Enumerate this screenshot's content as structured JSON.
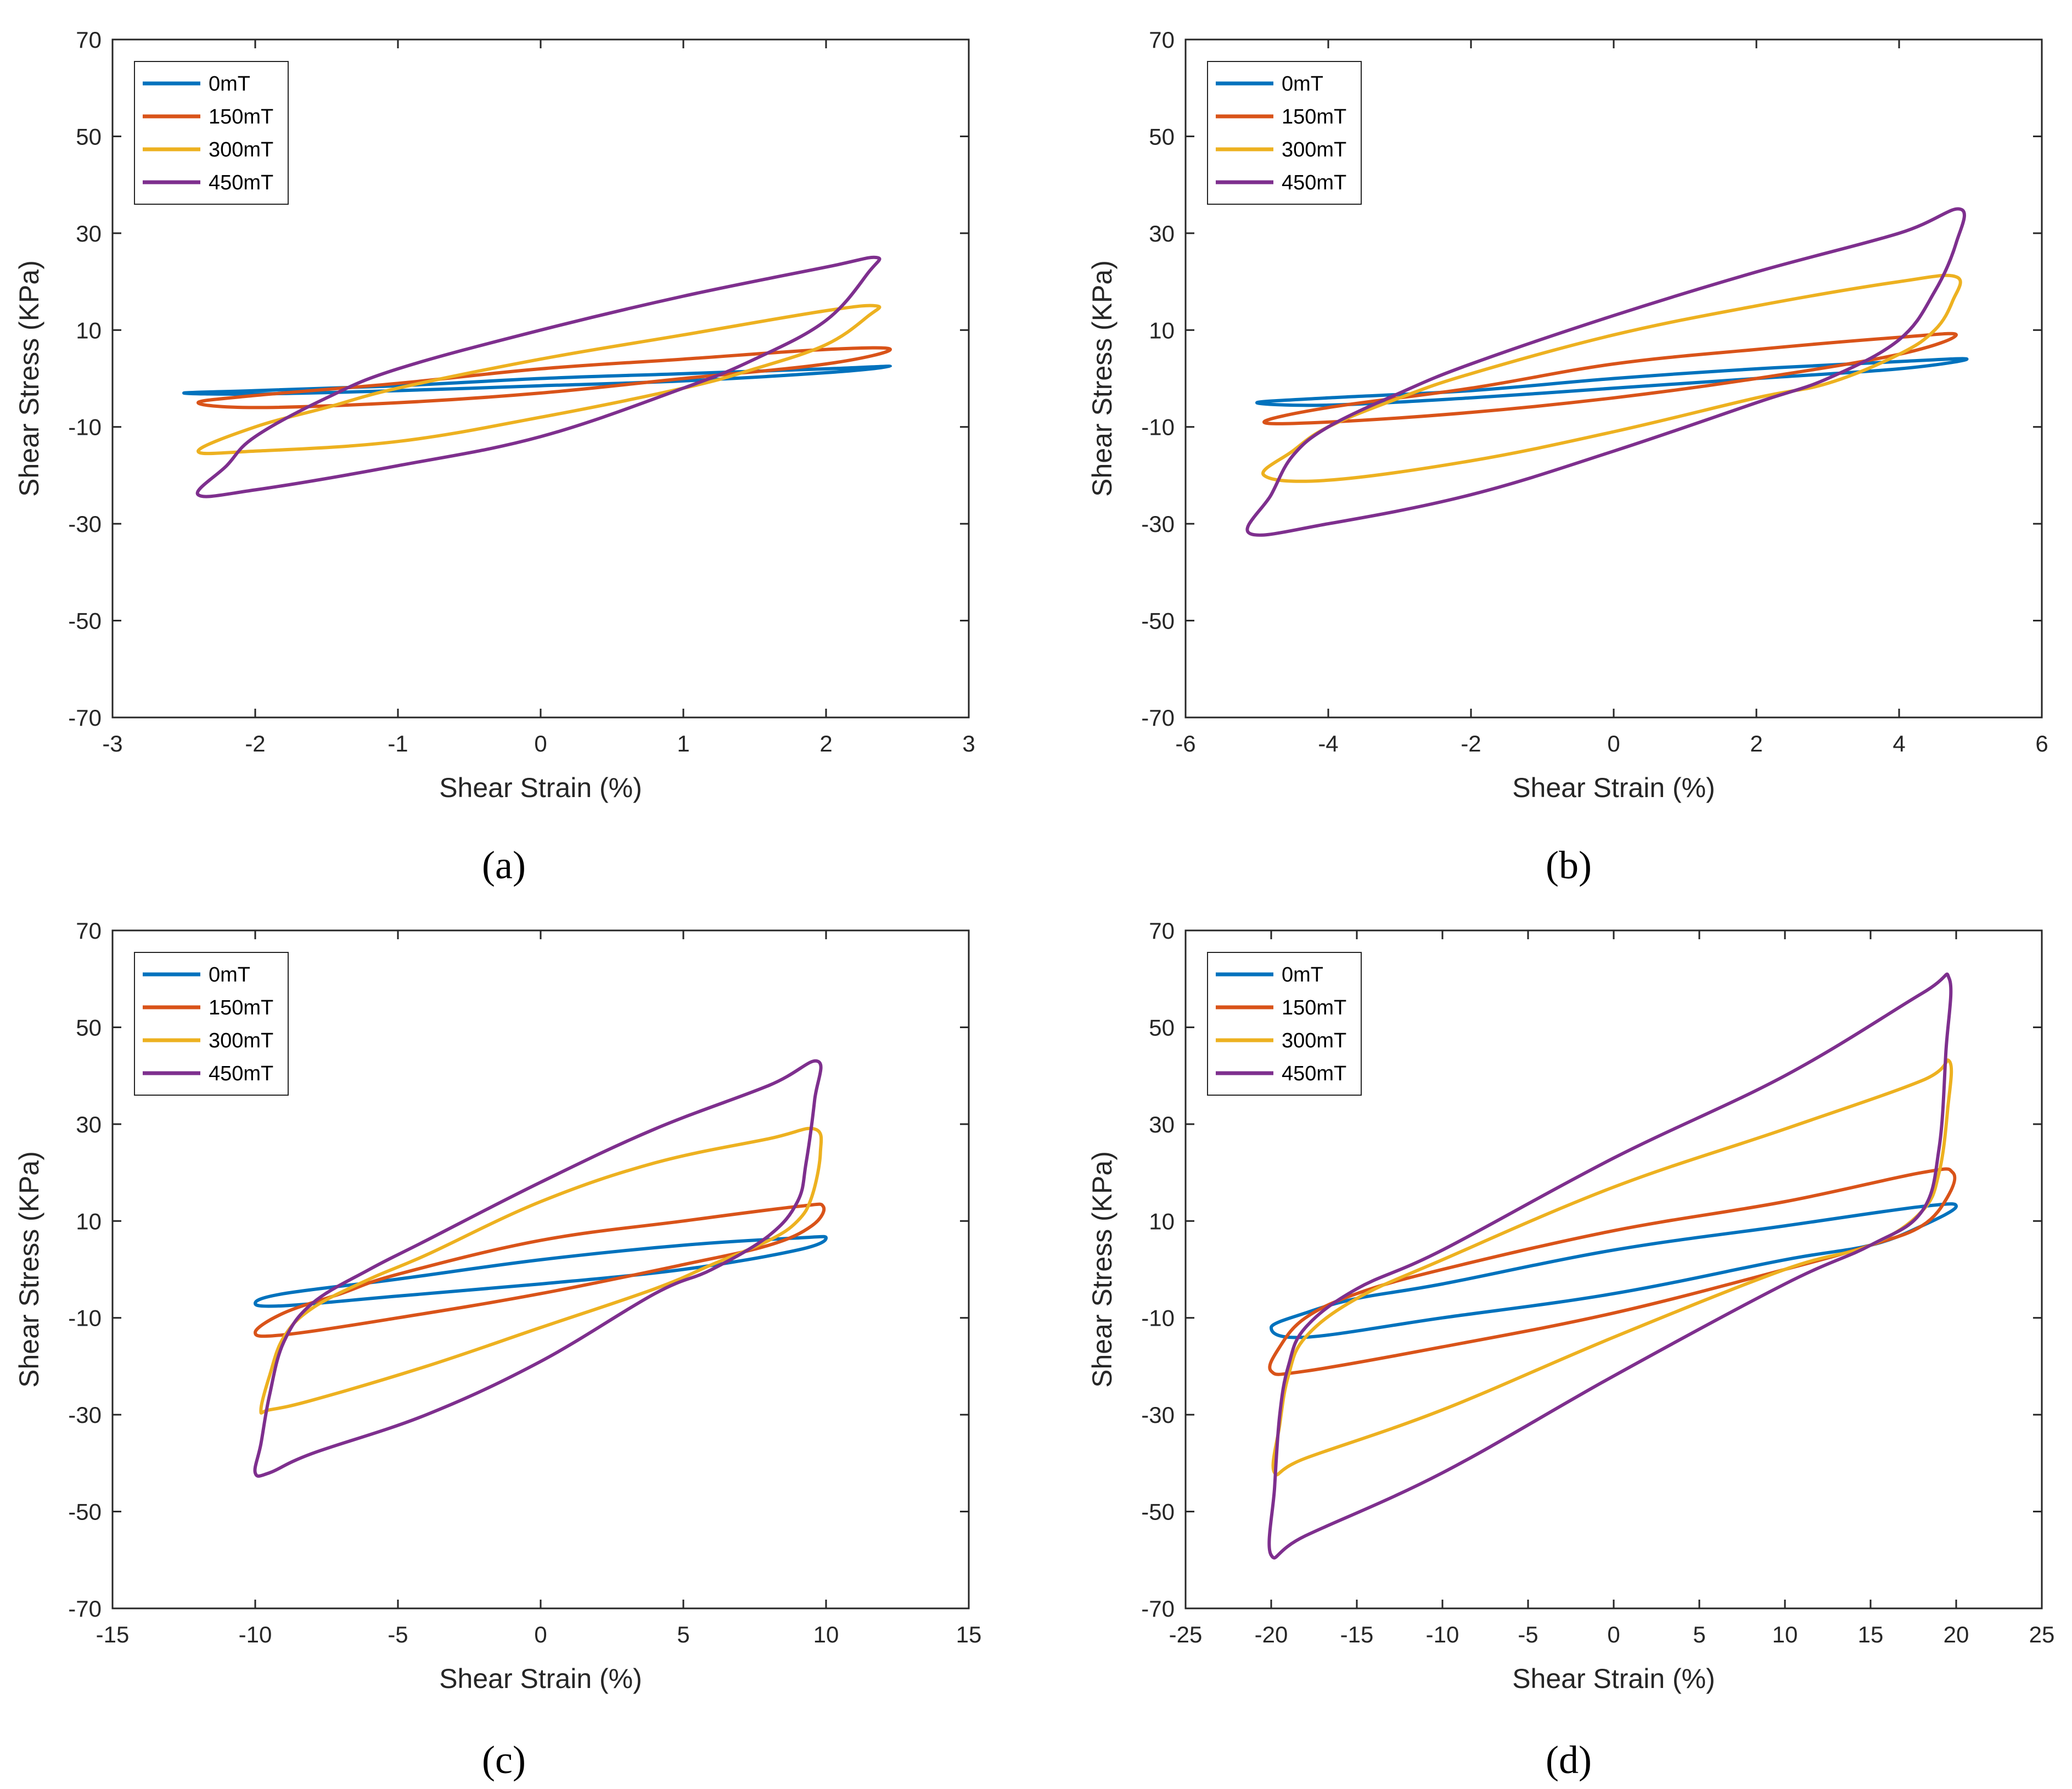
{
  "colors": {
    "0mT": "#0072BD",
    "150mT": "#D95319",
    "300mT": "#EDB120",
    "450mT": "#7E2F8E"
  },
  "chart_data": [
    {
      "type": "line",
      "caption": "(a)",
      "xlabel": "Shear Strain (%)",
      "ylabel": "Shear Stress (KPa)",
      "xlim": [
        -3,
        3
      ],
      "ylim": [
        -70,
        70
      ],
      "xticks": [
        -3,
        -2,
        -1,
        0,
        1,
        2,
        3
      ],
      "yticks": [
        -70,
        -50,
        -30,
        -10,
        10,
        30,
        50,
        70
      ],
      "grid": false,
      "legend": "top-left",
      "series": [
        {
          "name": "0mT",
          "amplitude": 2.5,
          "x": [
            -2.5,
            -2.0,
            -1.0,
            0.0,
            1.0,
            2.0,
            2.45,
            2.0,
            1.0,
            0.0,
            -1.0,
            -2.0,
            -2.5
          ],
          "y": [
            -3,
            -2.5,
            -1.5,
            0,
            1,
            2,
            2.5,
            1.2,
            -0.5,
            -1.5,
            -2.5,
            -3.2,
            -3
          ]
        },
        {
          "name": "150mT",
          "amplitude": 2.5,
          "x": [
            -2.4,
            -2.0,
            -1.0,
            0.0,
            1.0,
            2.0,
            2.45,
            2.0,
            1.0,
            0.0,
            -1.0,
            -2.0,
            -2.4
          ],
          "y": [
            -5,
            -3.5,
            -1,
            2,
            4,
            6,
            6,
            3,
            0,
            -3,
            -5,
            -6,
            -5
          ]
        },
        {
          "name": "300mT",
          "amplitude": 2.4,
          "x": [
            -2.4,
            -2.0,
            -1.5,
            -1.0,
            0.0,
            1.0,
            2.0,
            2.35,
            2.3,
            2.0,
            1.5,
            1.0,
            0.0,
            -1.0,
            -2.0,
            -2.4
          ],
          "y": [
            -15,
            -10,
            -6,
            -2,
            4,
            9,
            14,
            15,
            13,
            7,
            2,
            -2,
            -8,
            -13,
            -15,
            -15
          ]
        },
        {
          "name": "450mT",
          "amplitude": 2.4,
          "x": [
            -2.4,
            -2.2,
            -2.0,
            -1.5,
            -1.0,
            0.0,
            1.0,
            2.0,
            2.35,
            2.3,
            2.0,
            1.5,
            1.0,
            0.0,
            -1.0,
            -2.0,
            -2.4
          ],
          "y": [
            -24,
            -18,
            -12,
            -4,
            2,
            10,
            17,
            23,
            25,
            22,
            12,
            4,
            -2,
            -12,
            -18,
            -23,
            -24
          ]
        }
      ]
    },
    {
      "type": "line",
      "caption": "(b)",
      "xlabel": "Shear Strain (%)",
      "ylabel": "Shear Stress (KPa)",
      "xlim": [
        -6,
        6
      ],
      "ylim": [
        -70,
        70
      ],
      "xticks": [
        -6,
        -4,
        -2,
        0,
        2,
        4,
        6
      ],
      "yticks": [
        -70,
        -50,
        -30,
        -10,
        10,
        30,
        50,
        70
      ],
      "grid": false,
      "legend": "top-left",
      "series": [
        {
          "name": "0mT",
          "x": [
            -5.0,
            -4.0,
            -2.0,
            0.0,
            2.0,
            4.0,
            4.95,
            4.0,
            2.0,
            0.0,
            -2.0,
            -4.0,
            -5.0
          ],
          "y": [
            -5,
            -4,
            -2.5,
            0,
            2,
            3.5,
            4,
            2,
            0,
            -2,
            -4,
            -5.5,
            -5
          ]
        },
        {
          "name": "150mT",
          "x": [
            -4.9,
            -4.0,
            -2.0,
            0.0,
            2.0,
            4.0,
            4.8,
            4.0,
            2.0,
            0.0,
            -2.0,
            -4.0,
            -4.9
          ],
          "y": [
            -9,
            -6,
            -2,
            3,
            6,
            8.5,
            9,
            5,
            0,
            -4,
            -7,
            -9,
            -9
          ]
        },
        {
          "name": "300mT",
          "x": [
            -4.9,
            -4.5,
            -4.0,
            -3.0,
            -2.0,
            0.0,
            2.0,
            4.0,
            4.8,
            4.75,
            4.5,
            4.0,
            3.0,
            2.0,
            0.0,
            -2.0,
            -4.0,
            -4.9
          ],
          "y": [
            -20,
            -15,
            -10,
            -4,
            1,
            9,
            15,
            20,
            21,
            16,
            10,
            5,
            -1,
            -4,
            -11,
            -17,
            -21,
            -20
          ]
        },
        {
          "name": "450mT",
          "x": [
            -5.1,
            -4.8,
            -4.5,
            -4.0,
            -3.0,
            -2.0,
            0.0,
            2.0,
            4.0,
            4.85,
            4.8,
            4.5,
            4.0,
            3.0,
            2.0,
            0.0,
            -2.0,
            -4.0,
            -5.1
          ],
          "y": [
            -32,
            -24,
            -16,
            -10,
            -3,
            3,
            13,
            22,
            30,
            35,
            28,
            18,
            8,
            0,
            -5,
            -15,
            -24,
            -30,
            -32
          ]
        }
      ]
    },
    {
      "type": "line",
      "caption": "(c)",
      "xlabel": "Shear Strain (%)",
      "ylabel": "Shear Stress (KPa)",
      "xlim": [
        -15,
        15
      ],
      "ylim": [
        -70,
        70
      ],
      "xticks": [
        -15,
        -10,
        -5,
        0,
        5,
        10,
        15
      ],
      "yticks": [
        -70,
        -50,
        -30,
        -10,
        10,
        30,
        50,
        70
      ],
      "grid": false,
      "legend": "top-left",
      "series": [
        {
          "name": "0mT",
          "x": [
            -10.0,
            -9.0,
            -5.0,
            0.0,
            5.0,
            9.0,
            10.0,
            9.0,
            5.0,
            0.0,
            -5.0,
            -9.0,
            -10.0
          ],
          "y": [
            -7,
            -5,
            -2,
            2,
            5,
            6.5,
            6.5,
            4,
            0,
            -3,
            -5.5,
            -7.5,
            -7
          ]
        },
        {
          "name": "150mT",
          "x": [
            -10.0,
            -9.0,
            -7.0,
            -5.0,
            0.0,
            5.0,
            9.0,
            9.9,
            9.5,
            8.0,
            5.0,
            0.0,
            -5.0,
            -9.0,
            -10.0
          ],
          "y": [
            -13,
            -9,
            -5,
            -1,
            6,
            10,
            13,
            13,
            9,
            5,
            1,
            -5,
            -10,
            -13.5,
            -13
          ]
        },
        {
          "name": "300mT",
          "x": [
            -9.8,
            -9.5,
            -9.0,
            -8.0,
            -6.0,
            -4.0,
            0.0,
            4.0,
            8.0,
            9.6,
            9.8,
            9.5,
            9.0,
            8.0,
            6.0,
            4.0,
            0.0,
            -4.0,
            -8.0,
            -9.5,
            -9.8
          ],
          "y": [
            -29,
            -22,
            -14,
            -8,
            -2,
            3,
            14,
            22,
            27,
            29,
            24,
            15,
            10,
            6,
            1,
            -4,
            -12,
            -20,
            -27,
            -29,
            -29
          ]
        },
        {
          "name": "450mT",
          "x": [
            -10.0,
            -9.8,
            -9.5,
            -9.0,
            -8.0,
            -6.0,
            -4.0,
            0.0,
            4.0,
            8.0,
            9.7,
            9.6,
            9.3,
            9.0,
            8.0,
            6.0,
            4.0,
            0.0,
            -4.0,
            -8.0,
            -9.5,
            -10.0
          ],
          "y": [
            -42,
            -36,
            -26,
            -15,
            -7,
            0,
            6,
            18,
            29,
            38,
            43,
            35,
            22,
            14,
            7,
            0,
            -5,
            -19,
            -30,
            -38,
            -42,
            -42
          ]
        }
      ]
    },
    {
      "type": "line",
      "caption": "(d)",
      "xlabel": "Shear Strain (%)",
      "ylabel": "Shear Stress (KPa)",
      "xlim": [
        -25,
        25
      ],
      "ylim": [
        -70,
        70
      ],
      "xticks": [
        -25,
        -20,
        -15,
        -10,
        -5,
        0,
        5,
        10,
        15,
        20,
        25
      ],
      "yticks": [
        -70,
        -50,
        -30,
        -10,
        10,
        30,
        50,
        70
      ],
      "grid": false,
      "legend": "top-left",
      "series": [
        {
          "name": "0mT",
          "x": [
            -20.0,
            -18.0,
            -15.0,
            -10.0,
            0.0,
            10.0,
            18.0,
            20.0,
            18.0,
            15.0,
            10.0,
            0.0,
            -10.0,
            -18.0,
            -20.0
          ],
          "y": [
            -12,
            -9,
            -6,
            -3,
            4,
            9,
            13,
            13,
            9,
            5,
            2,
            -5,
            -10,
            -14,
            -12
          ]
        },
        {
          "name": "150mT",
          "x": [
            -20.0,
            -19.5,
            -18.0,
            -15.0,
            -10.0,
            0.0,
            10.0,
            18.0,
            19.8,
            19.5,
            18.0,
            15.0,
            10.0,
            0.0,
            -10.0,
            -18.0,
            -20.0
          ],
          "y": [
            -21,
            -16,
            -10,
            -5,
            0,
            8,
            14,
            20,
            20,
            15,
            9,
            5,
            0,
            -9,
            -16,
            -21,
            -21
          ]
        },
        {
          "name": "300mT",
          "x": [
            -19.8,
            -19.5,
            -19.0,
            -18.0,
            -15.0,
            -10.0,
            0.0,
            10.0,
            18.0,
            19.6,
            19.5,
            19.0,
            18.0,
            15.0,
            10.0,
            0.0,
            -10.0,
            -18.0,
            -19.8
          ],
          "y": [
            -42,
            -32,
            -22,
            -14,
            -6,
            2,
            17,
            29,
            39,
            43,
            33,
            20,
            12,
            5,
            0,
            -14,
            -29,
            -39,
            -42
          ]
        },
        {
          "name": "450mT",
          "x": [
            -20.0,
            -19.8,
            -19.5,
            -19.0,
            -18.0,
            -15.0,
            -10.0,
            0.0,
            10.0,
            18.0,
            19.6,
            19.4,
            19.0,
            18.0,
            15.0,
            10.0,
            0.0,
            -10.0,
            -18.0,
            -20.0
          ],
          "y": [
            -59,
            -45,
            -30,
            -20,
            -12,
            -4,
            4,
            23,
            40,
            57,
            60,
            45,
            25,
            12,
            5,
            -3,
            -22,
            -42,
            -55,
            -59
          ]
        }
      ]
    }
  ]
}
